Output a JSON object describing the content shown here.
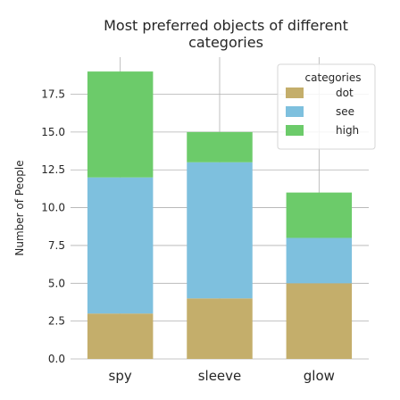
{
  "chart_data": {
    "type": "bar",
    "stacked": true,
    "title": "Most preferred objects of different categories",
    "title_lines": [
      "Most preferred objects of different",
      "categories"
    ],
    "xlabel": "",
    "ylabel": "Number of People",
    "categories": [
      "spy",
      "sleeve",
      "glow"
    ],
    "series": [
      {
        "name": "dot",
        "values": [
          3,
          4,
          5
        ],
        "color": "#c4ae6b"
      },
      {
        "name": "see",
        "values": [
          9,
          9,
          3
        ],
        "color": "#7ec0de"
      },
      {
        "name": "high",
        "values": [
          7,
          2,
          3
        ],
        "color": "#6ccb6a"
      }
    ],
    "ylim": [
      0,
      19.95
    ],
    "yticks": [
      0.0,
      2.5,
      5.0,
      7.5,
      10.0,
      12.5,
      15.0,
      17.5
    ],
    "ytick_labels": [
      "0.0",
      "2.5",
      "5.0",
      "7.5",
      "10.0",
      "12.5",
      "15.0",
      "17.5"
    ],
    "grid": true,
    "legend": {
      "title": "categories",
      "placement": "top-right"
    }
  }
}
